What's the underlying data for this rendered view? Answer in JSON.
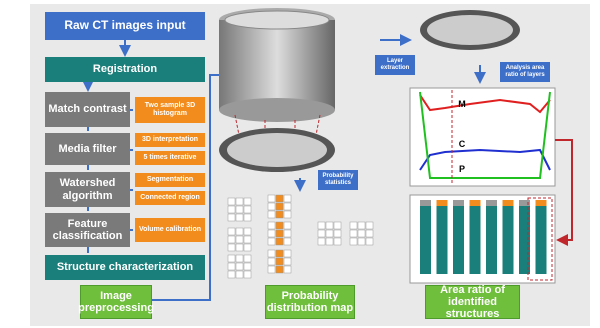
{
  "left": {
    "input": "Raw CT images input",
    "registration": "Registration",
    "steps": [
      {
        "label": "Match contrast",
        "options": [
          "Two sample 3D histogram"
        ]
      },
      {
        "label": "Media filter",
        "options": [
          "3D interpretation",
          "5 times iterative"
        ]
      },
      {
        "label": "Watershed algorithm",
        "options": [
          "Segmentation",
          "Connected region"
        ]
      },
      {
        "label": "Feature classification",
        "options": [
          "Volume calibration"
        ]
      }
    ],
    "output": "Structure characterization",
    "caption": "Image preprocessing"
  },
  "middle": {
    "note": "Probability statistics",
    "caption": "Probability distribution map"
  },
  "right": {
    "extract": "Layer extraction",
    "analysis": "Analysis area ratio of layers",
    "plot_labels": [
      "M",
      "C",
      "P"
    ],
    "caption": "Area ratio of identified structures"
  }
}
